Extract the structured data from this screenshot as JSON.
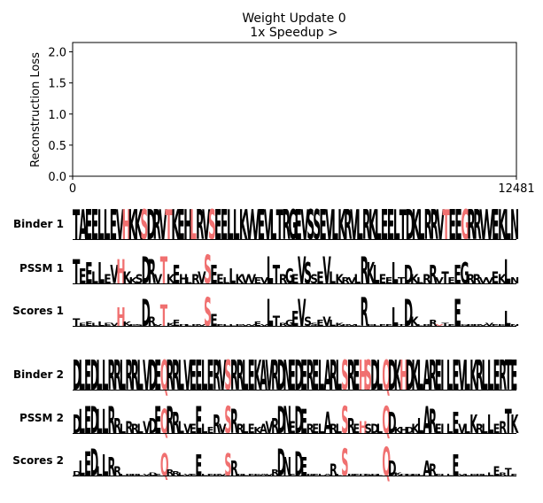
{
  "header": {
    "title_line1": "Weight Update 0",
    "title_line2": "1x Speedup >"
  },
  "chart_data": {
    "type": "line",
    "title": "Weight Update 0\n1x Speedup >",
    "ylabel": "Reconstruction Loss",
    "xlabel": "",
    "xlim": [
      0,
      12481
    ],
    "ylim": [
      0,
      2.15
    ],
    "x_ticks": [
      "0",
      "12481"
    ],
    "y_ticks": [
      "0.0",
      "0.5",
      "1.0",
      "1.5",
      "2.0"
    ],
    "series": [],
    "grid": false
  },
  "logos": {
    "highlight_color": "#f07070",
    "text_color": "#000000",
    "rows": [
      {
        "label": "Binder 1",
        "sequence": "TAEELLEVHKKSDRVTKEHLRVSEELLKVVEVLTRGEVSSEVLKRVLRKLEELTDKLRRVTEEGRRVVEKLN",
        "highlight": [
          8,
          11,
          15,
          19,
          22,
          60,
          63
        ],
        "heights": [
          1,
          1,
          1,
          1,
          1,
          1,
          1,
          1,
          1,
          1,
          1,
          1,
          1,
          1,
          1,
          1,
          1,
          1,
          1,
          1,
          1,
          1,
          1,
          1,
          1,
          1,
          1,
          1,
          1,
          1,
          1,
          1,
          1,
          1,
          1,
          1,
          1,
          1,
          1,
          1,
          1,
          1,
          1,
          1,
          1,
          1,
          1,
          1,
          1,
          1,
          1,
          1,
          1,
          1,
          1,
          1,
          1,
          1,
          1,
          1,
          1,
          1,
          1,
          1,
          1,
          1,
          1,
          1,
          1,
          1,
          1
        ]
      },
      {
        "label": "PSSM 1",
        "sequence": "TEELLEVHKKSDRVTKEHLRVSEELLKVVEVLTRGEVSSEVLKRVLRKLEELTDKLRRVTEEGRRVVEKLN",
        "highlight": [
          7,
          14,
          21
        ],
        "heights": [
          0.8,
          0.5,
          0.7,
          0.4,
          0.7,
          0.3,
          0.6,
          0.8,
          0.4,
          0.2,
          0.3,
          0.9,
          0.8,
          0.3,
          0.9,
          0.3,
          0.6,
          0.3,
          0.2,
          0.3,
          0.4,
          0.95,
          0.6,
          0.3,
          0.2,
          0.5,
          0.3,
          0.3,
          0.3,
          0.2,
          0.2,
          0.9,
          0.6,
          0.3,
          0.5,
          0.3,
          0.9,
          0.7,
          0.3,
          0.4,
          0.9,
          0.4,
          0.3,
          0.2,
          0.2,
          0.3,
          0.9,
          0.7,
          0.6,
          0.3,
          0.2,
          0.7,
          0.2,
          0.6,
          0.3,
          0.2,
          0.3,
          0.6,
          0.2,
          0.4,
          0.2,
          0.6,
          0.7,
          0.3,
          0.3,
          0.2,
          0.2,
          0.4,
          0.3,
          0.8,
          0.2
        ]
      },
      {
        "label": "Scores 1",
        "sequence": "TEELLEVHKKSDRVTKEHLRVSEELLKVVEVLTRGEVSSEVLKRVLRKLEELTDKLRRVTEEGRRVVEKLN",
        "highlight": [
          7,
          14,
          21,
          58
        ],
        "heights": [
          0.25,
          0.1,
          0.15,
          0.1,
          0.15,
          0.1,
          0.1,
          0.6,
          0.15,
          0.05,
          0.05,
          0.9,
          0.3,
          0.05,
          0.7,
          0.1,
          0.2,
          0.05,
          0.05,
          0.05,
          0.05,
          0.95,
          0.4,
          0.05,
          0.05,
          0.05,
          0.05,
          0.05,
          0.05,
          0.15,
          0.05,
          0.9,
          0.35,
          0.1,
          0.2,
          0.5,
          0.9,
          0.3,
          0.1,
          0.2,
          0.3,
          0.2,
          0.1,
          0.05,
          0.05,
          0.05,
          0.95,
          0.05,
          0.05,
          0.05,
          0.05,
          0.6,
          0.05,
          0.9,
          0.3,
          0.05,
          0.05,
          0.2,
          0.05,
          0.1,
          0.05,
          0.9,
          0.05,
          0.05,
          0.05,
          0.05,
          0.1,
          0.05,
          0.05,
          0.5,
          0.05
        ]
      },
      {
        "label": "Binder 2",
        "sequence": "DLEDLLRRLRRLVDEQRRLVEELERVSRRLEKAVRDNEDERELARLSREHSDLQDKHDKLAREILEVLKRLLERTE",
        "highlight": [
          15,
          26,
          46,
          49,
          50,
          53,
          56
        ],
        "heights": [
          1,
          1,
          1,
          1,
          1,
          1,
          1,
          1,
          1,
          1,
          1,
          1,
          1,
          1,
          1,
          1,
          1,
          1,
          1,
          1,
          1,
          1,
          1,
          1,
          1,
          1,
          1,
          1,
          1,
          1,
          1,
          1,
          1,
          1,
          1,
          1,
          1,
          1,
          1,
          1,
          1,
          1,
          1,
          1,
          1,
          1,
          1,
          1,
          1,
          1,
          1,
          1,
          1,
          1,
          1,
          1,
          1,
          1,
          1,
          1,
          1,
          1,
          1,
          1,
          1,
          1,
          1,
          1,
          1,
          1,
          1,
          1,
          1,
          1,
          1,
          1
        ]
      },
      {
        "label": "PSSM 2",
        "sequence": "DLEDLLRRLRRLVDEQRRLVEELERVSRRLEKAVRDNEDERELARLSREHSDLQDKHDKLAREILEVLKRLLERTK",
        "highlight": [
          15,
          26,
          46,
          49,
          53
        ],
        "heights": [
          0.6,
          0.8,
          0.9,
          0.9,
          0.8,
          0.8,
          0.9,
          0.5,
          0.3,
          0.4,
          0.3,
          0.3,
          0.4,
          0.5,
          0.9,
          0.8,
          0.9,
          0.7,
          0.4,
          0.3,
          0.3,
          0.9,
          0.3,
          0.2,
          0.6,
          0.3,
          0.9,
          0.8,
          0.3,
          0.3,
          0.3,
          0.2,
          0.3,
          0.4,
          0.5,
          0.9,
          0.9,
          0.4,
          0.9,
          0.8,
          0.3,
          0.3,
          0.3,
          0.7,
          0.3,
          0.3,
          0.9,
          0.5,
          0.3,
          0.4,
          0.3,
          0.3,
          0.3,
          0.9,
          0.7,
          0.2,
          0.2,
          0.2,
          0.3,
          0.5,
          0.9,
          0.8,
          0.3,
          0.3,
          0.3,
          0.7,
          0.3,
          0.3,
          0.6,
          0.3,
          0.3,
          0.6,
          0.3,
          0.4,
          0.8,
          0.6
        ]
      },
      {
        "label": "Scores 2",
        "sequence": "DLEDLLRRLRRLVDEQRRLVEELERVSRRLEKAVRDNEDERELARLSREHSDLQDKHDKLAREILEVLKRLLERTE",
        "highlight": [
          15,
          26,
          46,
          53
        ],
        "heights": [
          0.15,
          0.5,
          0.8,
          0.9,
          0.3,
          0.7,
          0.6,
          0.3,
          0.05,
          0.05,
          0.05,
          0.05,
          0.05,
          0.1,
          0.05,
          0.75,
          0.2,
          0.15,
          0.1,
          0.05,
          0.05,
          0.7,
          0.05,
          0.05,
          0.05,
          0.05,
          0.75,
          0.5,
          0.05,
          0.05,
          0.05,
          0.05,
          0.05,
          0.05,
          0.2,
          0.9,
          0.6,
          0.05,
          0.8,
          0.6,
          0.05,
          0.05,
          0.05,
          0.05,
          0.4,
          0.05,
          0.9,
          0.05,
          0.05,
          0.05,
          0.05,
          0.05,
          0.05,
          0.95,
          0.5,
          0.1,
          0.05,
          0.05,
          0.05,
          0.05,
          0.5,
          0.4,
          0.05,
          0.05,
          0.05,
          0.7,
          0.05,
          0.05,
          0.05,
          0.05,
          0.05,
          0.1,
          0.3,
          0.1,
          0.25,
          0.05
        ]
      }
    ]
  }
}
